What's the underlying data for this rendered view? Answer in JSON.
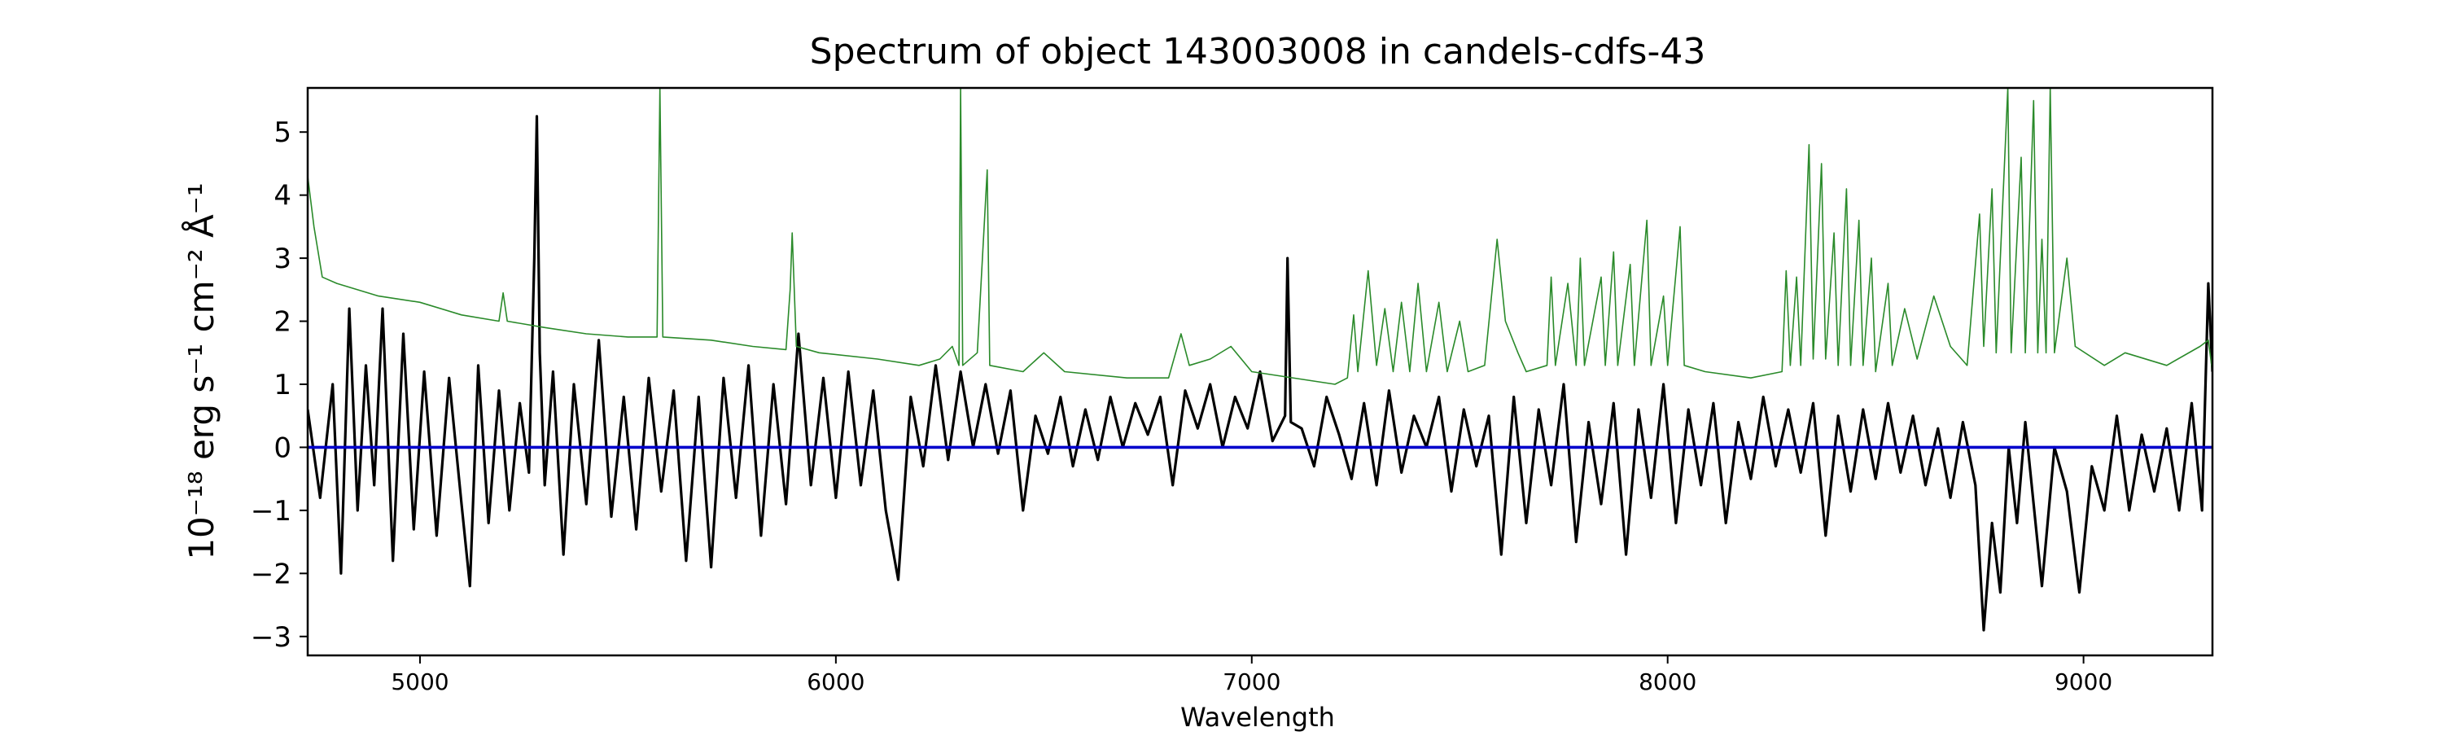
{
  "chart_data": {
    "type": "line",
    "title": "Spectrum of object 143003008 in candels-cdfs-43",
    "xlabel": "Wavelength",
    "ylabel": "10⁻¹⁸ erg s⁻¹ cm⁻² Å⁻¹",
    "xlim": [
      4730,
      9310
    ],
    "ylim": [
      -3.3,
      5.7
    ],
    "x_ticks": [
      5000,
      6000,
      7000,
      8000,
      9000
    ],
    "y_ticks": [
      -3,
      -2,
      -1,
      0,
      1,
      2,
      3,
      4,
      5
    ],
    "grid": false,
    "legend": "none",
    "series": [
      {
        "color": "#000000",
        "points": [
          [
            4730,
            0.6
          ],
          [
            4760,
            -0.8
          ],
          [
            4790,
            1.0
          ],
          [
            4810,
            -2.0
          ],
          [
            4830,
            2.2
          ],
          [
            4850,
            -1.0
          ],
          [
            4870,
            1.3
          ],
          [
            4890,
            -0.6
          ],
          [
            4910,
            2.2
          ],
          [
            4935,
            -1.8
          ],
          [
            4960,
            1.8
          ],
          [
            4985,
            -1.3
          ],
          [
            5010,
            1.2
          ],
          [
            5040,
            -1.4
          ],
          [
            5070,
            1.1
          ],
          [
            5100,
            -0.9
          ],
          [
            5120,
            -2.2
          ],
          [
            5140,
            1.3
          ],
          [
            5165,
            -1.2
          ],
          [
            5190,
            0.9
          ],
          [
            5215,
            -1.0
          ],
          [
            5240,
            0.7
          ],
          [
            5262,
            -0.4
          ],
          [
            5275,
            3.0
          ],
          [
            5281,
            5.25
          ],
          [
            5288,
            1.5
          ],
          [
            5300,
            -0.6
          ],
          [
            5320,
            1.2
          ],
          [
            5345,
            -1.7
          ],
          [
            5370,
            1.0
          ],
          [
            5400,
            -0.9
          ],
          [
            5430,
            1.7
          ],
          [
            5460,
            -1.1
          ],
          [
            5490,
            0.8
          ],
          [
            5520,
            -1.3
          ],
          [
            5550,
            1.1
          ],
          [
            5580,
            -0.7
          ],
          [
            5610,
            0.9
          ],
          [
            5640,
            -1.8
          ],
          [
            5670,
            0.8
          ],
          [
            5700,
            -1.9
          ],
          [
            5730,
            1.1
          ],
          [
            5760,
            -0.8
          ],
          [
            5790,
            1.3
          ],
          [
            5820,
            -1.4
          ],
          [
            5850,
            1.0
          ],
          [
            5880,
            -0.9
          ],
          [
            5910,
            1.8
          ],
          [
            5940,
            -0.6
          ],
          [
            5970,
            1.1
          ],
          [
            6000,
            -0.8
          ],
          [
            6030,
            1.2
          ],
          [
            6060,
            -0.6
          ],
          [
            6090,
            0.9
          ],
          [
            6120,
            -1.0
          ],
          [
            6150,
            -2.1
          ],
          [
            6180,
            0.8
          ],
          [
            6210,
            -0.3
          ],
          [
            6240,
            1.3
          ],
          [
            6270,
            -0.2
          ],
          [
            6300,
            1.2
          ],
          [
            6330,
            0.0
          ],
          [
            6360,
            1.0
          ],
          [
            6390,
            -0.1
          ],
          [
            6420,
            0.9
          ],
          [
            6450,
            -1.0
          ],
          [
            6480,
            0.5
          ],
          [
            6510,
            -0.1
          ],
          [
            6540,
            0.8
          ],
          [
            6570,
            -0.3
          ],
          [
            6600,
            0.6
          ],
          [
            6630,
            -0.2
          ],
          [
            6660,
            0.8
          ],
          [
            6690,
            0.0
          ],
          [
            6720,
            0.7
          ],
          [
            6750,
            0.2
          ],
          [
            6780,
            0.8
          ],
          [
            6810,
            -0.6
          ],
          [
            6840,
            0.9
          ],
          [
            6870,
            0.3
          ],
          [
            6900,
            1.0
          ],
          [
            6930,
            0.0
          ],
          [
            6960,
            0.8
          ],
          [
            6990,
            0.3
          ],
          [
            7020,
            1.2
          ],
          [
            7050,
            0.1
          ],
          [
            7080,
            0.5
          ],
          [
            7086,
            3.0
          ],
          [
            7094,
            0.4
          ],
          [
            7120,
            0.3
          ],
          [
            7150,
            -0.3
          ],
          [
            7180,
            0.8
          ],
          [
            7210,
            0.2
          ],
          [
            7240,
            -0.5
          ],
          [
            7270,
            0.7
          ],
          [
            7300,
            -0.6
          ],
          [
            7330,
            0.9
          ],
          [
            7360,
            -0.4
          ],
          [
            7390,
            0.5
          ],
          [
            7420,
            0.0
          ],
          [
            7450,
            0.8
          ],
          [
            7480,
            -0.7
          ],
          [
            7510,
            0.6
          ],
          [
            7540,
            -0.3
          ],
          [
            7570,
            0.5
          ],
          [
            7600,
            -1.7
          ],
          [
            7630,
            0.8
          ],
          [
            7660,
            -1.2
          ],
          [
            7690,
            0.6
          ],
          [
            7720,
            -0.6
          ],
          [
            7750,
            1.0
          ],
          [
            7780,
            -1.5
          ],
          [
            7810,
            0.4
          ],
          [
            7840,
            -0.9
          ],
          [
            7870,
            0.7
          ],
          [
            7900,
            -1.7
          ],
          [
            7930,
            0.6
          ],
          [
            7960,
            -0.8
          ],
          [
            7990,
            1.0
          ],
          [
            8020,
            -1.2
          ],
          [
            8050,
            0.6
          ],
          [
            8080,
            -0.6
          ],
          [
            8110,
            0.7
          ],
          [
            8140,
            -1.2
          ],
          [
            8170,
            0.4
          ],
          [
            8200,
            -0.5
          ],
          [
            8230,
            0.8
          ],
          [
            8260,
            -0.3
          ],
          [
            8290,
            0.6
          ],
          [
            8320,
            -0.4
          ],
          [
            8350,
            0.7
          ],
          [
            8380,
            -1.4
          ],
          [
            8410,
            0.5
          ],
          [
            8440,
            -0.7
          ],
          [
            8470,
            0.6
          ],
          [
            8500,
            -0.5
          ],
          [
            8530,
            0.7
          ],
          [
            8560,
            -0.4
          ],
          [
            8590,
            0.5
          ],
          [
            8620,
            -0.6
          ],
          [
            8650,
            0.3
          ],
          [
            8680,
            -0.8
          ],
          [
            8710,
            0.4
          ],
          [
            8740,
            -0.6
          ],
          [
            8760,
            -2.9
          ],
          [
            8780,
            -1.2
          ],
          [
            8800,
            -2.3
          ],
          [
            8820,
            0.0
          ],
          [
            8840,
            -1.2
          ],
          [
            8860,
            0.4
          ],
          [
            8880,
            -0.9
          ],
          [
            8900,
            -2.2
          ],
          [
            8930,
            0.0
          ],
          [
            8960,
            -0.7
          ],
          [
            8990,
            -2.3
          ],
          [
            9020,
            -0.3
          ],
          [
            9050,
            -1.0
          ],
          [
            9080,
            0.5
          ],
          [
            9110,
            -1.0
          ],
          [
            9140,
            0.2
          ],
          [
            9170,
            -0.7
          ],
          [
            9200,
            0.3
          ],
          [
            9230,
            -1.0
          ],
          [
            9260,
            0.7
          ],
          [
            9285,
            -1.0
          ],
          [
            9300,
            2.6
          ],
          [
            9310,
            1.2
          ]
        ]
      },
      {
        "color": "#2a8a2a",
        "points": [
          [
            4730,
            4.3
          ],
          [
            4745,
            3.5
          ],
          [
            4765,
            2.7
          ],
          [
            4800,
            2.6
          ],
          [
            4900,
            2.4
          ],
          [
            5000,
            2.3
          ],
          [
            5100,
            2.1
          ],
          [
            5190,
            2.0
          ],
          [
            5200,
            2.45
          ],
          [
            5210,
            2.0
          ],
          [
            5300,
            1.9
          ],
          [
            5400,
            1.8
          ],
          [
            5500,
            1.75
          ],
          [
            5570,
            1.75
          ],
          [
            5577,
            5.7
          ],
          [
            5584,
            1.75
          ],
          [
            5700,
            1.7
          ],
          [
            5800,
            1.6
          ],
          [
            5880,
            1.55
          ],
          [
            5890,
            2.5
          ],
          [
            5895,
            3.4
          ],
          [
            5905,
            1.6
          ],
          [
            5960,
            1.5
          ],
          [
            6100,
            1.4
          ],
          [
            6200,
            1.3
          ],
          [
            6250,
            1.4
          ],
          [
            6280,
            1.6
          ],
          [
            6296,
            1.3
          ],
          [
            6300,
            5.7
          ],
          [
            6305,
            1.3
          ],
          [
            6340,
            1.5
          ],
          [
            6364,
            4.4
          ],
          [
            6370,
            1.3
          ],
          [
            6450,
            1.2
          ],
          [
            6500,
            1.5
          ],
          [
            6550,
            1.2
          ],
          [
            6700,
            1.1
          ],
          [
            6800,
            1.1
          ],
          [
            6830,
            1.8
          ],
          [
            6850,
            1.3
          ],
          [
            6900,
            1.4
          ],
          [
            6950,
            1.6
          ],
          [
            7000,
            1.2
          ],
          [
            7200,
            1.0
          ],
          [
            7230,
            1.1
          ],
          [
            7245,
            2.1
          ],
          [
            7255,
            1.2
          ],
          [
            7280,
            2.8
          ],
          [
            7300,
            1.3
          ],
          [
            7320,
            2.2
          ],
          [
            7340,
            1.2
          ],
          [
            7360,
            2.3
          ],
          [
            7380,
            1.2
          ],
          [
            7400,
            2.6
          ],
          [
            7420,
            1.2
          ],
          [
            7450,
            2.3
          ],
          [
            7470,
            1.2
          ],
          [
            7500,
            2.0
          ],
          [
            7520,
            1.2
          ],
          [
            7560,
            1.3
          ],
          [
            7590,
            3.3
          ],
          [
            7610,
            2.0
          ],
          [
            7640,
            1.5
          ],
          [
            7660,
            1.2
          ],
          [
            7710,
            1.3
          ],
          [
            7720,
            2.7
          ],
          [
            7730,
            1.3
          ],
          [
            7760,
            2.6
          ],
          [
            7780,
            1.3
          ],
          [
            7790,
            3.0
          ],
          [
            7800,
            1.3
          ],
          [
            7840,
            2.7
          ],
          [
            7850,
            1.3
          ],
          [
            7870,
            3.1
          ],
          [
            7880,
            1.3
          ],
          [
            7910,
            2.9
          ],
          [
            7920,
            1.3
          ],
          [
            7950,
            3.6
          ],
          [
            7960,
            1.3
          ],
          [
            7990,
            2.4
          ],
          [
            8000,
            1.3
          ],
          [
            8030,
            3.5
          ],
          [
            8040,
            1.3
          ],
          [
            8090,
            1.2
          ],
          [
            8200,
            1.1
          ],
          [
            8275,
            1.2
          ],
          [
            8285,
            2.8
          ],
          [
            8295,
            1.3
          ],
          [
            8310,
            2.7
          ],
          [
            8320,
            1.3
          ],
          [
            8340,
            4.8
          ],
          [
            8350,
            1.4
          ],
          [
            8370,
            4.5
          ],
          [
            8380,
            1.4
          ],
          [
            8400,
            3.4
          ],
          [
            8410,
            1.3
          ],
          [
            8430,
            4.1
          ],
          [
            8440,
            1.3
          ],
          [
            8460,
            3.6
          ],
          [
            8470,
            1.3
          ],
          [
            8490,
            3.0
          ],
          [
            8500,
            1.2
          ],
          [
            8530,
            2.6
          ],
          [
            8540,
            1.3
          ],
          [
            8570,
            2.2
          ],
          [
            8600,
            1.4
          ],
          [
            8640,
            2.4
          ],
          [
            8680,
            1.6
          ],
          [
            8720,
            1.3
          ],
          [
            8750,
            3.7
          ],
          [
            8760,
            1.6
          ],
          [
            8780,
            4.1
          ],
          [
            8790,
            1.5
          ],
          [
            8818,
            5.7
          ],
          [
            8826,
            1.5
          ],
          [
            8850,
            4.6
          ],
          [
            8860,
            1.5
          ],
          [
            8880,
            5.5
          ],
          [
            8890,
            1.5
          ],
          [
            8900,
            3.3
          ],
          [
            8910,
            1.5
          ],
          [
            8920,
            5.7
          ],
          [
            8930,
            1.5
          ],
          [
            8960,
            3.0
          ],
          [
            8980,
            1.6
          ],
          [
            9050,
            1.3
          ],
          [
            9100,
            1.5
          ],
          [
            9200,
            1.3
          ],
          [
            9280,
            1.6
          ],
          [
            9300,
            1.7
          ],
          [
            9310,
            1.2
          ]
        ]
      },
      {
        "color": "#0000cc",
        "points": [
          [
            4730,
            0
          ],
          [
            9310,
            0
          ]
        ]
      }
    ]
  }
}
